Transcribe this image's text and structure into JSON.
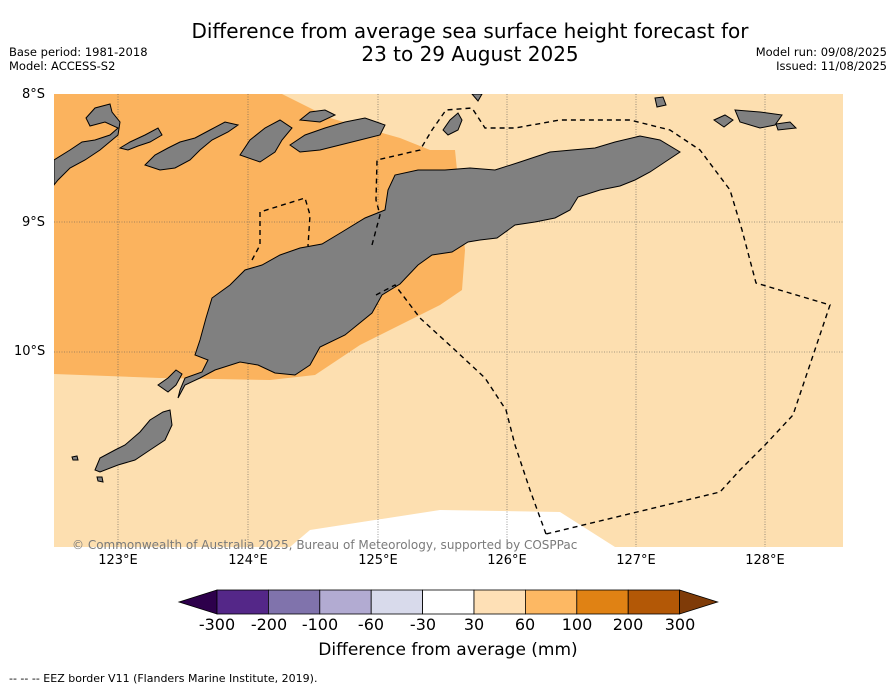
{
  "title": {
    "line1": "Difference from average sea surface height forecast for",
    "line2": "23 to 29 August 2025"
  },
  "meta_left": {
    "base_period": "Base period: 1981-2018",
    "model": "Model: ACCESS-S2"
  },
  "meta_right": {
    "model_run": "Model run: 09/08/2025",
    "issued": "Issued: 11/08/2025"
  },
  "map": {
    "lat_labels": [
      "8°S",
      "9°S",
      "10°S"
    ],
    "lon_labels": [
      "123°E",
      "124°E",
      "125°E",
      "126°E",
      "127°E",
      "128°E"
    ],
    "copyright": "© Commonwealth of Australia 2025, Bureau of Meteorology, supported by COSPPac",
    "colors": {
      "land": "#808080",
      "band_30_60": "#fddfb0",
      "band_60_100": "#fbb35e",
      "ocean_low": "#ffffff"
    }
  },
  "colorbar": {
    "title": "Difference from average (mm)",
    "tick_labels": [
      "-300",
      "-200",
      "-100",
      "-60",
      "-30",
      "30",
      "60",
      "100",
      "200",
      "300"
    ],
    "colors": [
      "#2d004b",
      "#542788",
      "#8073ac",
      "#b2abd2",
      "#d8daeb",
      "#ffffff",
      "#fee0b6",
      "#fdb863",
      "#e08214",
      "#b35806",
      "#7f3b08"
    ]
  },
  "footnote": "--  --  -- EEZ border V11 (Flanders Marine Institute, 2019)."
}
